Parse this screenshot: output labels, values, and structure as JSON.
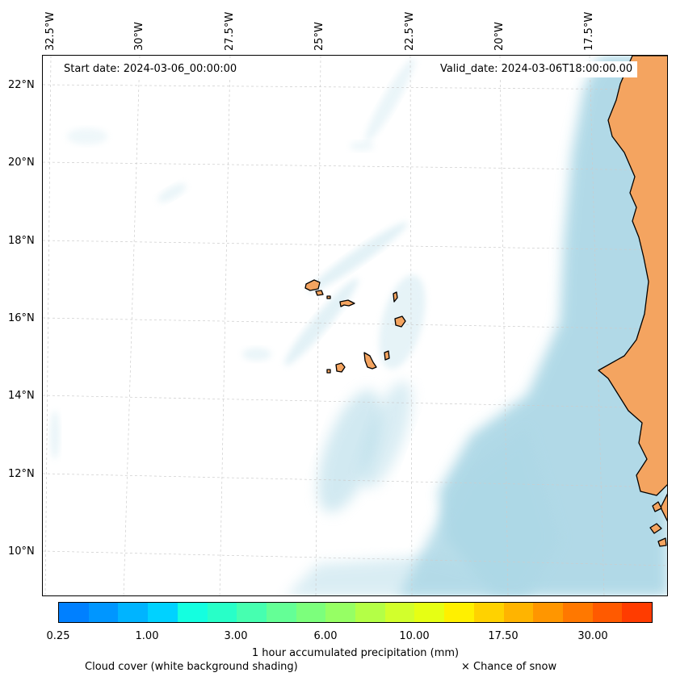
{
  "map": {
    "start_date": "Start date: 2024-03-06_00:00:00",
    "valid_date": "Valid_date: 2024-03-06T18:00:00.00",
    "lon_ticks": [
      "32.5°W",
      "30°W",
      "27.5°W",
      "25°W",
      "22.5°W",
      "20°W",
      "17.5°W"
    ],
    "lat_ticks": [
      "22°N",
      "20°N",
      "18°N",
      "16°N",
      "14°N",
      "12°N",
      "10°N"
    ],
    "extent": {
      "lon_west": -32.6,
      "lon_east": -15.8,
      "lat_south": 8.9,
      "lat_north": 22.7
    },
    "gridlines": true,
    "colors": {
      "land": "#f4a460",
      "cloud": "#add8e6",
      "coastline": "#000000"
    }
  },
  "colorbar": {
    "tick_labels": [
      "0.25",
      "1.00",
      "3.00",
      "6.00",
      "10.00",
      "17.50",
      "30.00"
    ],
    "colors": [
      "#0080ff",
      "#0096ff",
      "#00b4ff",
      "#00d2ff",
      "#14ffe0",
      "#28ffc8",
      "#46ffb0",
      "#64ff96",
      "#7cff7c",
      "#96ff64",
      "#b4ff46",
      "#d2ff2c",
      "#e6ff14",
      "#fff000",
      "#ffd200",
      "#ffb400",
      "#ff9600",
      "#ff7800",
      "#ff5a00",
      "#ff3c00"
    ],
    "title": "1 hour accumulated precipitation (mm)"
  },
  "legend": {
    "cloud_note": "Cloud cover (white background shading)",
    "snow_note": "× Chance of snow"
  }
}
